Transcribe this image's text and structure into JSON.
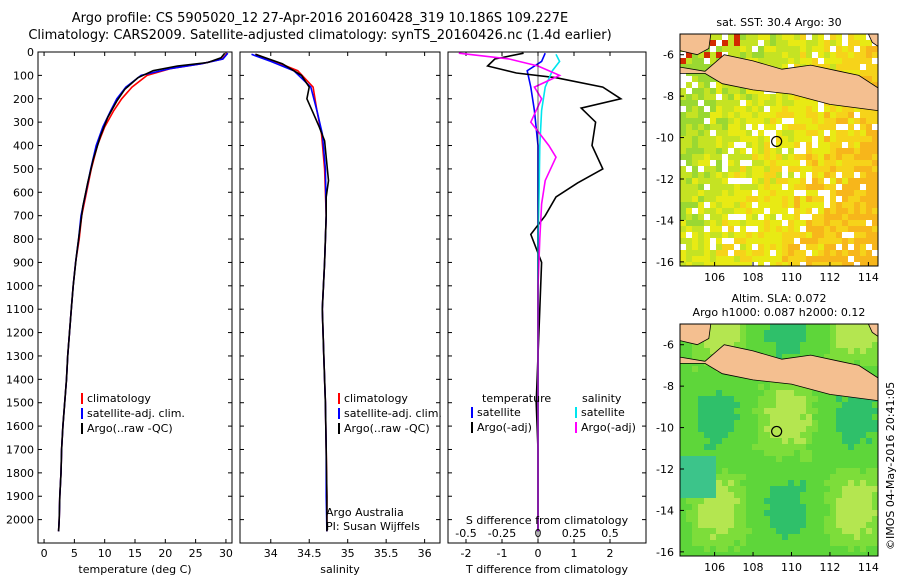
{
  "title_line1": "Argo profile: CS 5905020_12 27-Apr-2016 20160428_319 10.186S 109.227E",
  "title_line2": "Climatology: CARS2009. Satellite-adjusted climatology: synTS_20160426.nc (1.4d earlier)",
  "watermark": "©IMOS 04-May-2016 20:41:05",
  "colors": {
    "climatology": "#ff0000",
    "satellite": "#0000ff",
    "argo": "#000000",
    "sat_diff": "#00e5ee",
    "argo_diff": "#ff00ff",
    "land": "#f4bf90"
  },
  "chart_data": [
    {
      "type": "line",
      "name": "temperature",
      "xlabel": "temperature (deg C)",
      "ylim": [
        2100,
        0
      ],
      "xlim": [
        -1,
        31
      ],
      "xticks": [
        0,
        5,
        10,
        15,
        20,
        25,
        30
      ],
      "yticks": [
        0,
        100,
        200,
        300,
        400,
        500,
        600,
        700,
        800,
        900,
        1000,
        1100,
        1200,
        1300,
        1400,
        1500,
        1600,
        1700,
        1800,
        1900,
        2000
      ],
      "legend": [
        "climatology",
        "satellite-adj. clim.",
        "Argo(..raw -QC)"
      ],
      "series": [
        {
          "name": "climatology",
          "color": "#ff0000",
          "points": [
            [
              30.2,
              5
            ],
            [
              29.4,
              30
            ],
            [
              26,
              50
            ],
            [
              21,
              70
            ],
            [
              17,
              100
            ],
            [
              14.5,
              150
            ],
            [
              12.8,
              200
            ],
            [
              11.5,
              250
            ],
            [
              10,
              320
            ],
            [
              8.8,
              400
            ],
            [
              7.8,
              500
            ],
            [
              7,
              600
            ],
            [
              6.2,
              700
            ],
            [
              5.8,
              800
            ],
            [
              5.2,
              900
            ],
            [
              4.8,
              1000
            ],
            [
              4.5,
              1100
            ],
            [
              4.2,
              1200
            ],
            [
              3.9,
              1300
            ],
            [
              3.7,
              1400
            ],
            [
              3.4,
              1500
            ],
            [
              3.1,
              1600
            ],
            [
              2.9,
              1700
            ],
            [
              2.8,
              1800
            ],
            [
              2.6,
              1900
            ],
            [
              2.5,
              2000
            ],
            [
              2.4,
              2050
            ]
          ]
        },
        {
          "name": "satellite-adj. clim.",
          "color": "#0000ff",
          "points": [
            [
              30.3,
              5
            ],
            [
              29.5,
              30
            ],
            [
              26,
              50
            ],
            [
              21,
              70
            ],
            [
              16,
              100
            ],
            [
              13.5,
              150
            ],
            [
              12,
              200
            ],
            [
              11,
              250
            ],
            [
              9.7,
              320
            ],
            [
              8.6,
              400
            ],
            [
              7.7,
              500
            ],
            [
              6.9,
              600
            ],
            [
              6.1,
              700
            ],
            [
              5.7,
              800
            ],
            [
              5.2,
              900
            ],
            [
              4.8,
              1000
            ],
            [
              4.5,
              1100
            ],
            [
              4.2,
              1200
            ],
            [
              3.9,
              1300
            ],
            [
              3.7,
              1400
            ],
            [
              3.4,
              1500
            ],
            [
              3.1,
              1600
            ],
            [
              2.9,
              1700
            ],
            [
              2.8,
              1800
            ],
            [
              2.6,
              1900
            ],
            [
              2.5,
              2000
            ],
            [
              2.4,
              2050
            ]
          ]
        },
        {
          "name": "Argo(..raw -QC)",
          "color": "#000000",
          "points": [
            [
              29.8,
              5
            ],
            [
              29.2,
              25
            ],
            [
              27,
              45
            ],
            [
              22,
              60
            ],
            [
              18,
              80
            ],
            [
              15.5,
              110
            ],
            [
              13.3,
              160
            ],
            [
              12,
              210
            ],
            [
              10.5,
              280
            ],
            [
              9.3,
              360
            ],
            [
              8.1,
              460
            ],
            [
              7.2,
              560
            ],
            [
              6.4,
              660
            ],
            [
              5.8,
              780
            ],
            [
              5.3,
              880
            ],
            [
              4.8,
              1000
            ],
            [
              4.5,
              1100
            ],
            [
              4.2,
              1200
            ],
            [
              3.9,
              1300
            ],
            [
              3.7,
              1400
            ],
            [
              3.4,
              1500
            ],
            [
              3.1,
              1600
            ],
            [
              2.9,
              1700
            ],
            [
              2.8,
              1800
            ],
            [
              2.6,
              1900
            ],
            [
              2.5,
              2000
            ],
            [
              2.4,
              2050
            ]
          ]
        }
      ]
    },
    {
      "type": "line",
      "name": "salinity",
      "xlabel": "salinity",
      "ylim": [
        2100,
        0
      ],
      "xlim": [
        33.6,
        36.2
      ],
      "xticks": [
        34,
        34.5,
        35,
        35.5,
        36
      ],
      "legend": [
        "climatology",
        "satellite-adj. clim.",
        "Argo(..raw -QC)"
      ],
      "annotation": [
        "Argo Australia",
        "PI: Susan Wijffels"
      ],
      "series": [
        {
          "name": "climatology",
          "color": "#ff0000",
          "points": [
            [
              33.8,
              10
            ],
            [
              34.05,
              40
            ],
            [
              34.35,
              80
            ],
            [
              34.55,
              150
            ],
            [
              34.6,
              250
            ],
            [
              34.66,
              350
            ],
            [
              34.7,
              500
            ],
            [
              34.72,
              700
            ],
            [
              34.7,
              900
            ],
            [
              34.67,
              1100
            ],
            [
              34.69,
              1300
            ],
            [
              34.71,
              1500
            ],
            [
              34.72,
              1700
            ],
            [
              34.73,
              1900
            ],
            [
              34.73,
              2050
            ]
          ]
        },
        {
          "name": "satellite-adj. clim.",
          "color": "#0000ff",
          "points": [
            [
              33.75,
              10
            ],
            [
              34.0,
              40
            ],
            [
              34.3,
              80
            ],
            [
              34.52,
              150
            ],
            [
              34.6,
              250
            ],
            [
              34.67,
              350
            ],
            [
              34.71,
              500
            ],
            [
              34.72,
              700
            ],
            [
              34.7,
              900
            ],
            [
              34.67,
              1100
            ],
            [
              34.69,
              1300
            ],
            [
              34.71,
              1500
            ],
            [
              34.72,
              1700
            ],
            [
              34.72,
              1900
            ],
            [
              34.73,
              2050
            ]
          ]
        },
        {
          "name": "Argo(..raw -QC)",
          "color": "#000000",
          "points": [
            [
              33.8,
              10
            ],
            [
              34.15,
              50
            ],
            [
              34.4,
              100
            ],
            [
              34.5,
              150
            ],
            [
              34.47,
              200
            ],
            [
              34.55,
              260
            ],
            [
              34.63,
              320
            ],
            [
              34.7,
              380
            ],
            [
              34.72,
              450
            ],
            [
              34.75,
              550
            ],
            [
              34.72,
              620
            ],
            [
              34.72,
              700
            ],
            [
              34.7,
              900
            ],
            [
              34.67,
              1100
            ],
            [
              34.69,
              1300
            ],
            [
              34.71,
              1500
            ],
            [
              34.72,
              1700
            ],
            [
              34.73,
              1900
            ],
            [
              34.73,
              2050
            ]
          ]
        }
      ]
    },
    {
      "type": "line",
      "name": "difference",
      "xlabel": "T difference from climatology",
      "xlabel_top": "S difference from climatology",
      "ylim": [
        2100,
        0
      ],
      "xlim": [
        -2.5,
        3
      ],
      "xticks": [
        -2,
        -1,
        0,
        1,
        2
      ],
      "xticklabels_top": [
        "-0.5",
        "-0.25",
        "0",
        "0.25",
        "0.5"
      ],
      "legend_temperature": [
        "temperature",
        "satellite",
        "Argo(-adj)"
      ],
      "legend_salinity": [
        "salinity",
        "satellite",
        "Argo(-adj)"
      ],
      "series": [
        {
          "name": "temperature satellite",
          "color": "#0000ff",
          "points": [
            [
              0.2,
              5
            ],
            [
              0.1,
              40
            ],
            [
              -0.3,
              80
            ],
            [
              -0.2,
              150
            ],
            [
              -0.1,
              250
            ],
            [
              0,
              400
            ],
            [
              0,
              800
            ],
            [
              0,
              1200
            ],
            [
              0,
              1600
            ],
            [
              0,
              2050
            ]
          ]
        },
        {
          "name": "temperature Argo(-adj)",
          "color": "#000000",
          "points": [
            [
              -0.4,
              5
            ],
            [
              -1.2,
              30
            ],
            [
              -1.4,
              60
            ],
            [
              -0.6,
              90
            ],
            [
              0.5,
              110
            ],
            [
              1.8,
              150
            ],
            [
              2.3,
              200
            ],
            [
              1.2,
              240
            ],
            [
              1.6,
              300
            ],
            [
              1.5,
              400
            ],
            [
              1.8,
              500
            ],
            [
              1.1,
              560
            ],
            [
              0.5,
              620
            ],
            [
              0.2,
              700
            ],
            [
              -0.2,
              780
            ],
            [
              0.1,
              900
            ],
            [
              0.05,
              1100
            ],
            [
              0,
              1300
            ],
            [
              -0.05,
              1500
            ],
            [
              0,
              1700
            ],
            [
              0,
              2050
            ]
          ]
        },
        {
          "name": "salinity satellite",
          "color": "#00e5ee",
          "points": [
            [
              0.5,
              10
            ],
            [
              0.6,
              40
            ],
            [
              0.4,
              80
            ],
            [
              0.2,
              150
            ],
            [
              0.1,
              250
            ],
            [
              0.05,
              400
            ],
            [
              0.03,
              600
            ],
            [
              0,
              800
            ],
            [
              0,
              1200
            ],
            [
              0,
              2050
            ]
          ]
        },
        {
          "name": "salinity Argo(-adj)",
          "color": "#ff00ff",
          "points": [
            [
              -2.2,
              5
            ],
            [
              -0.8,
              30
            ],
            [
              0,
              60
            ],
            [
              0.6,
              100
            ],
            [
              -0.1,
              150
            ],
            [
              0.1,
              200
            ],
            [
              -0.2,
              300
            ],
            [
              0.3,
              400
            ],
            [
              0.5,
              450
            ],
            [
              0.2,
              550
            ],
            [
              0.1,
              650
            ],
            [
              0.05,
              800
            ],
            [
              0,
              1000
            ],
            [
              0,
              1300
            ],
            [
              0,
              1600
            ],
            [
              0,
              2050
            ]
          ]
        }
      ]
    },
    {
      "type": "heatmap",
      "name": "sst map",
      "title": "sat. SST: 30.4 Argo: 30",
      "xlim": [
        104.2,
        114.5
      ],
      "ylim": [
        -16.2,
        -5
      ],
      "xticks": [
        106,
        108,
        110,
        112,
        114
      ],
      "yticks": [
        -6,
        -8,
        -10,
        -12,
        -14,
        -16
      ],
      "marker": [
        109.227,
        -10.186
      ]
    },
    {
      "type": "heatmap",
      "name": "sla map",
      "title": [
        "Altim. SLA: 0.072",
        "Argo h1000: 0.087 h2000: 0.12"
      ],
      "xlim": [
        104.2,
        114.5
      ],
      "ylim": [
        -16.2,
        -5
      ],
      "xticks": [
        106,
        108,
        110,
        112,
        114
      ],
      "yticks": [
        -6,
        -8,
        -10,
        -12,
        -14,
        -16
      ],
      "marker": [
        109.227,
        -10.186
      ]
    }
  ]
}
